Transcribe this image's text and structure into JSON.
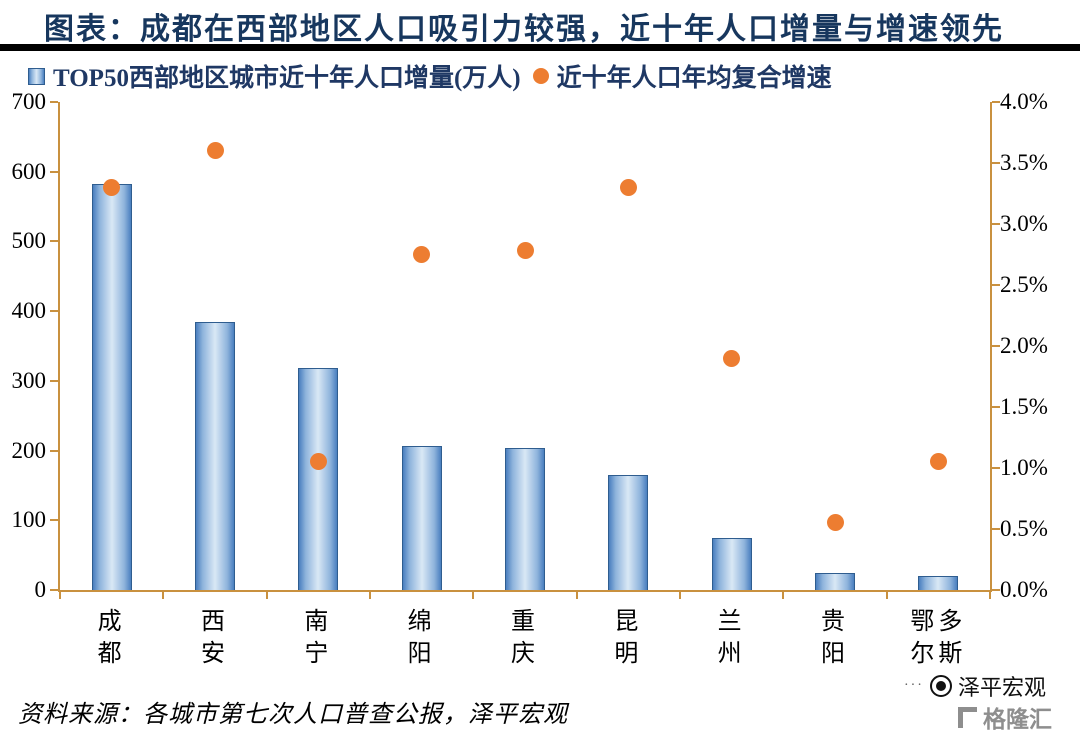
{
  "header": {
    "title": "图表：成都在西部地区人口吸引力较强，近十年人口增量与增速领先"
  },
  "legend": {
    "bar_label": "TOP50西部地区城市近十年人口增量(万人)",
    "dot_label": "近十年人口年均复合增速"
  },
  "colors": {
    "bar_edge": "#4A7FBF",
    "bar_center": "#D9E8F5",
    "bar_border": "#2F5D8F",
    "dot_orange": "#ED7D31",
    "axis_line": "#C9913F",
    "title_navy": "#17375E",
    "divider_black": "#000000",
    "gelonghui_grey": "#8E8E8E"
  },
  "chart_data": {
    "type": "bar+scatter",
    "title": "图表：成都在西部地区人口吸引力较强，近十年人口增量与增速领先",
    "categories": [
      "成都",
      "西安",
      "南宁",
      "绵阳",
      "重庆",
      "昆明",
      "兰州",
      "贵阳",
      "鄂尔多斯"
    ],
    "series": [
      {
        "name": "TOP50西部地区城市近十年人口增量(万人)",
        "type": "bar",
        "axis": "left",
        "unit": "万人",
        "values": [
          582,
          385,
          318,
          206,
          203,
          165,
          74,
          25,
          20
        ]
      },
      {
        "name": "近十年人口年均复合增速",
        "type": "scatter",
        "axis": "right",
        "unit": "%",
        "values": [
          3.3,
          3.6,
          1.05,
          2.75,
          2.78,
          3.3,
          1.9,
          0.55,
          1.05
        ]
      }
    ],
    "left_axis": {
      "min": 0,
      "max": 700,
      "step": 100,
      "ticks": [
        "0",
        "100",
        "200",
        "300",
        "400",
        "500",
        "600",
        "700"
      ]
    },
    "right_axis": {
      "min": 0,
      "max": 4,
      "step": 0.5,
      "ticks": [
        "0.0%",
        "0.5%",
        "1.0%",
        "1.5%",
        "2.0%",
        "2.5%",
        "3.0%",
        "3.5%",
        "4.0%"
      ]
    },
    "grid": false,
    "legend_position": "top"
  },
  "footer": {
    "source": "资料来源：各城市第七次人口普查公报，泽平宏观"
  },
  "watermarks": {
    "zeping": "泽平宏观",
    "gelonghui": "格隆汇"
  }
}
